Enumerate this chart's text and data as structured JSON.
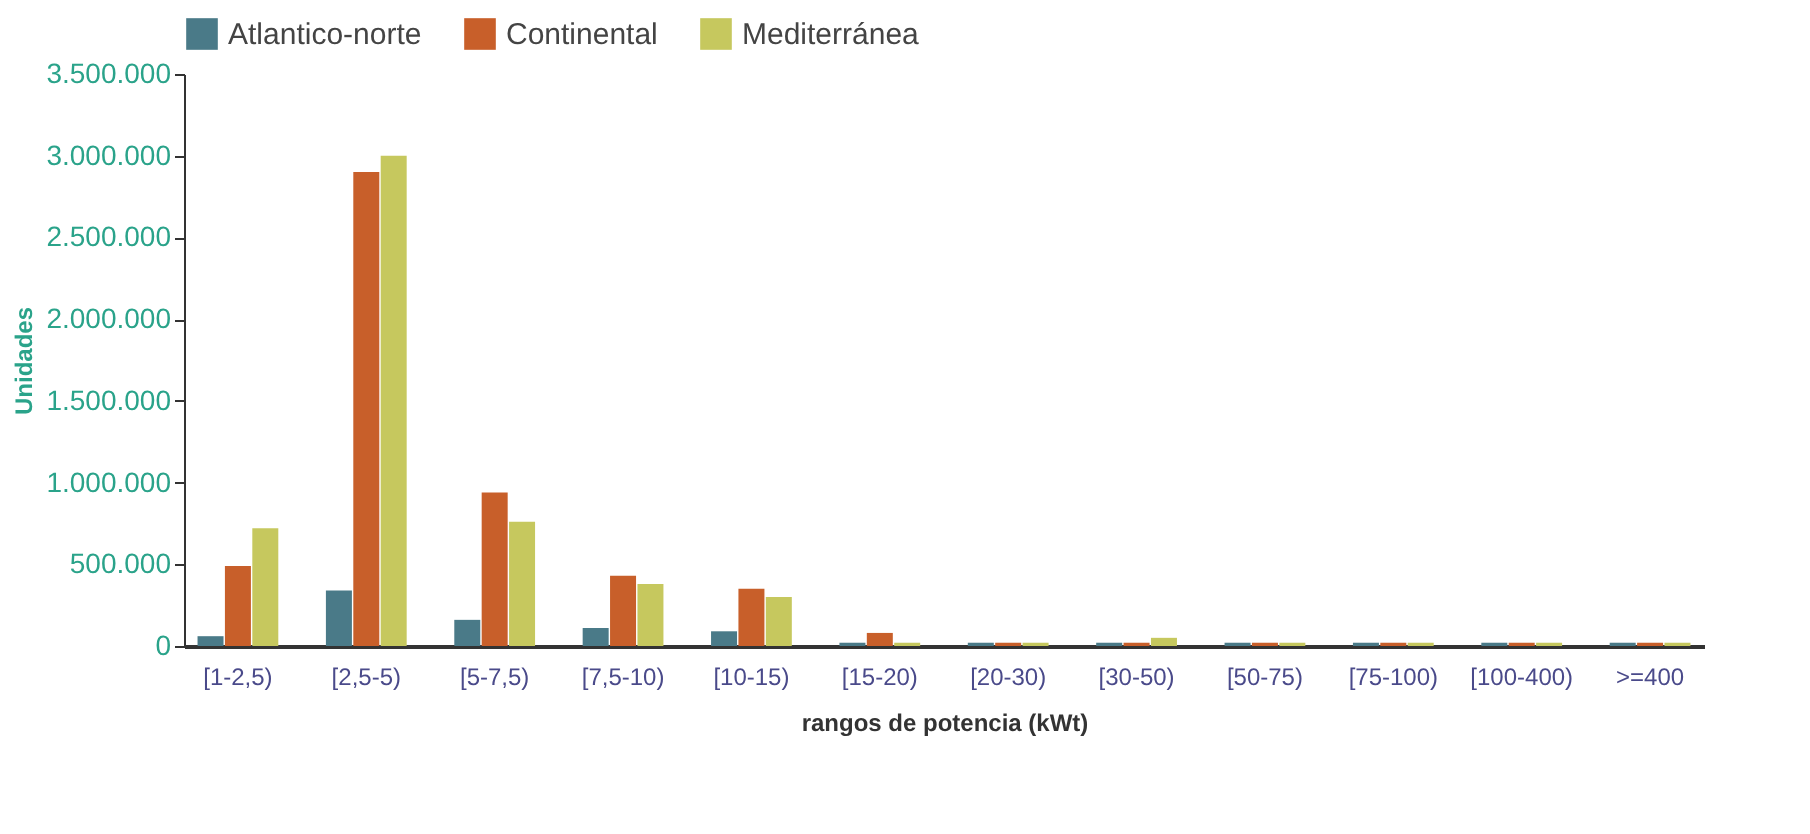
{
  "chart_data": {
    "type": "bar",
    "xlabel": "rangos de potencia (kWt)",
    "ylabel": "Unidades",
    "categories": [
      "[1-2,5)",
      "[2,5-5)",
      "[5-7,5)",
      "[7,5-10)",
      "[10-15)",
      "[15-20)",
      "[20-30)",
      "[30-50)",
      "[50-75)",
      "[75-100)",
      "[100-400)",
      ">=400"
    ],
    "series": [
      {
        "name": "Atlantico-norte",
        "color": "#4a7a88",
        "values": [
          60000,
          340000,
          160000,
          110000,
          90000,
          20000,
          20000,
          20000,
          20000,
          20000,
          20000,
          20000
        ]
      },
      {
        "name": "Continental",
        "color": "#c85f2a",
        "values": [
          490000,
          2900000,
          940000,
          430000,
          350000,
          80000,
          20000,
          20000,
          20000,
          20000,
          20000,
          20000
        ]
      },
      {
        "name": "Mediterránea",
        "color": "#c6c85e",
        "values": [
          720000,
          3000000,
          760000,
          380000,
          300000,
          20000,
          20000,
          50000,
          20000,
          20000,
          20000,
          20000
        ]
      }
    ],
    "ylim": [
      0,
      3500000
    ],
    "yticks": [
      {
        "value": 0,
        "label": "0"
      },
      {
        "value": 500000,
        "label": "500.000"
      },
      {
        "value": 1000000,
        "label": "1.000.000"
      },
      {
        "value": 1500000,
        "label": "1.500.000"
      },
      {
        "value": 2000000,
        "label": "2.000.000"
      },
      {
        "value": 2500000,
        "label": "2.500.000"
      },
      {
        "value": 3000000,
        "label": "3.000.000"
      },
      {
        "value": 3500000,
        "label": "3.500.000"
      }
    ],
    "legend": "top",
    "grid": false
  }
}
